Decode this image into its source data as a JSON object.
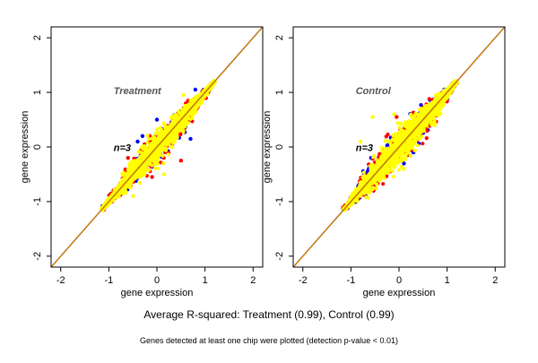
{
  "caption": "Average R-squared: Treatment (0.99), Control (0.99)",
  "footnote": "Genes detected at least one chip were plotted (detection p-value < 0.01)",
  "colors": {
    "series_1": "#0000ff",
    "series_2": "#ff0000",
    "series_3": "#ffff00",
    "identity_line": "#8b4500",
    "identity_line_overlay": "#ff9900"
  },
  "chart_data": [
    {
      "type": "scatter",
      "panel_label": "Treatment",
      "annotation": "n=3",
      "xlabel": "gene expression",
      "ylabel": "gene expression",
      "xlim": [
        -2.2,
        2.2
      ],
      "ylim": [
        -2.2,
        2.2
      ],
      "xticks": [
        -2,
        -1,
        0,
        1,
        2
      ],
      "yticks": [
        -2,
        -1,
        0,
        1,
        2
      ],
      "grid": false,
      "identity_line": true,
      "cloud": {
        "x_range": [
          -1.15,
          1.2
        ],
        "spread": 0.14
      },
      "series": [
        {
          "color": "#0000ff",
          "count": 350,
          "outliers": [
            [
              -0.4,
              0.1
            ],
            [
              0.0,
              0.5
            ],
            [
              0.3,
              0.45
            ],
            [
              -0.2,
              -0.2
            ],
            [
              0.7,
              0.15
            ],
            [
              -0.3,
              0.2
            ],
            [
              0.8,
              1.05
            ]
          ]
        },
        {
          "color": "#ff0000",
          "count": 550,
          "outliers": [
            [
              0.5,
              -0.25
            ],
            [
              -0.15,
              0.2
            ],
            [
              0.35,
              0.5
            ],
            [
              -0.6,
              -0.2
            ],
            [
              0.6,
              0.8
            ],
            [
              -0.1,
              -0.55
            ]
          ]
        },
        {
          "color": "#ffff00",
          "count": 1600,
          "outliers": [
            [
              0.55,
              0.95
            ],
            [
              0.15,
              -0.5
            ],
            [
              -0.05,
              0.05
            ],
            [
              -0.5,
              -0.9
            ]
          ]
        }
      ]
    },
    {
      "type": "scatter",
      "panel_label": "Control",
      "annotation": "n=3",
      "xlabel": "gene expression",
      "ylabel": "gene expression",
      "xlim": [
        -2.2,
        2.2
      ],
      "ylim": [
        -2.2,
        2.2
      ],
      "xticks": [
        -2,
        -1,
        0,
        1,
        2
      ],
      "yticks": [
        -2,
        -1,
        0,
        1,
        2
      ],
      "grid": false,
      "identity_line": true,
      "cloud": {
        "x_range": [
          -1.15,
          1.2
        ],
        "spread": 0.17
      },
      "series": [
        {
          "color": "#0000ff",
          "count": 350,
          "outliers": [
            [
              -0.25,
              -0.35
            ],
            [
              0.1,
              -0.3
            ],
            [
              -0.45,
              -0.6
            ],
            [
              0.3,
              -0.1
            ]
          ]
        },
        {
          "color": "#ff0000",
          "count": 550,
          "outliers": [
            [
              -0.05,
              0.55
            ],
            [
              0.55,
              0.35
            ],
            [
              -0.4,
              -0.3
            ],
            [
              0.2,
              0.45
            ]
          ]
        },
        {
          "color": "#ffff00",
          "count": 1700,
          "outliers": [
            [
              -0.55,
              0.55
            ],
            [
              -0.1,
              0.6
            ],
            [
              -0.6,
              -0.35
            ],
            [
              0.1,
              -0.4
            ],
            [
              -0.8,
              0.1
            ],
            [
              0.5,
              0.3
            ]
          ]
        }
      ]
    }
  ]
}
